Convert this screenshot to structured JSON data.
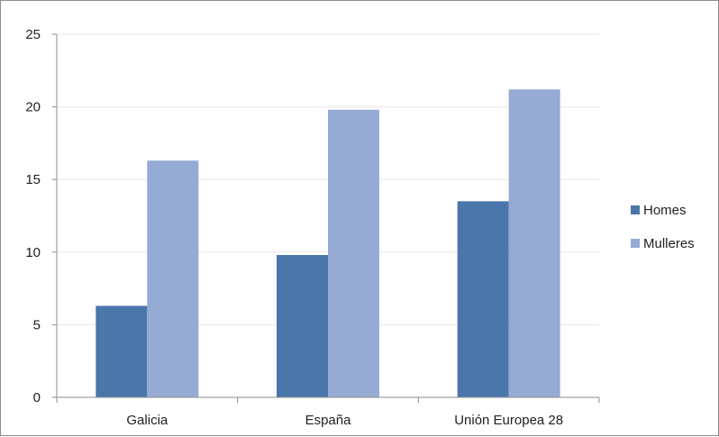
{
  "chart_data": {
    "type": "bar",
    "categories": [
      "Galicia",
      "España",
      "Unión Europea 28"
    ],
    "series": [
      {
        "name": "Homes",
        "values": [
          6.3,
          9.8,
          13.5
        ],
        "color": "#4a76aa"
      },
      {
        "name": "Mulleres",
        "values": [
          16.3,
          19.8,
          21.2
        ],
        "color": "#95abd4"
      }
    ],
    "title": "",
    "xlabel": "",
    "ylabel": "",
    "ylim": [
      0,
      25
    ],
    "yticks": [
      0,
      5,
      10,
      15,
      20,
      25
    ],
    "grid": true,
    "legend_position": "right"
  }
}
